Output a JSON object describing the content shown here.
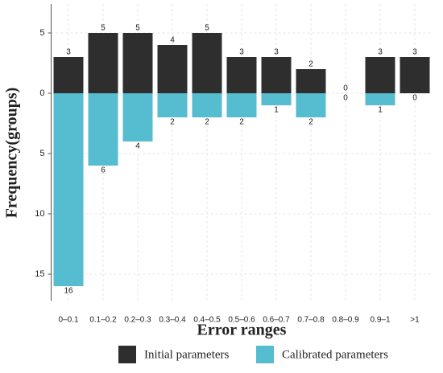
{
  "chart_data": {
    "type": "diverging_bar",
    "xlabel": "Error ranges",
    "ylabel": "Frequency(groups)",
    "categories": [
      "0–0.1",
      "0.1–0.2",
      "0.2–0.3",
      "0.3–0.4",
      "0.4–0.5",
      "0.5–0.6",
      "0.6–0.7",
      "0.7–0.8",
      "0.8–0.9",
      "0.9–1",
      ">1"
    ],
    "series": [
      {
        "name": "Initial parameters",
        "color": "#2e2e2e",
        "values": [
          3,
          5,
          5,
          4,
          5,
          3,
          3,
          2,
          0,
          3,
          3
        ]
      },
      {
        "name": "Calibrated parameters",
        "color": "#56bccf",
        "values": [
          -16,
          -6,
          -4,
          -2,
          -2,
          -2,
          -1,
          -2,
          0,
          -1,
          0
        ],
        "value_labels": [
          "16",
          "6",
          "4",
          "2",
          "2",
          "2",
          "1",
          "2",
          "0",
          "1",
          "0"
        ]
      }
    ],
    "ylim": [
      -17.2,
      7.4
    ],
    "yticks": [
      {
        "value": -15,
        "label": "15"
      },
      {
        "value": -10,
        "label": "10"
      },
      {
        "value": -5,
        "label": "5"
      },
      0,
      5
    ],
    "grid": true
  }
}
